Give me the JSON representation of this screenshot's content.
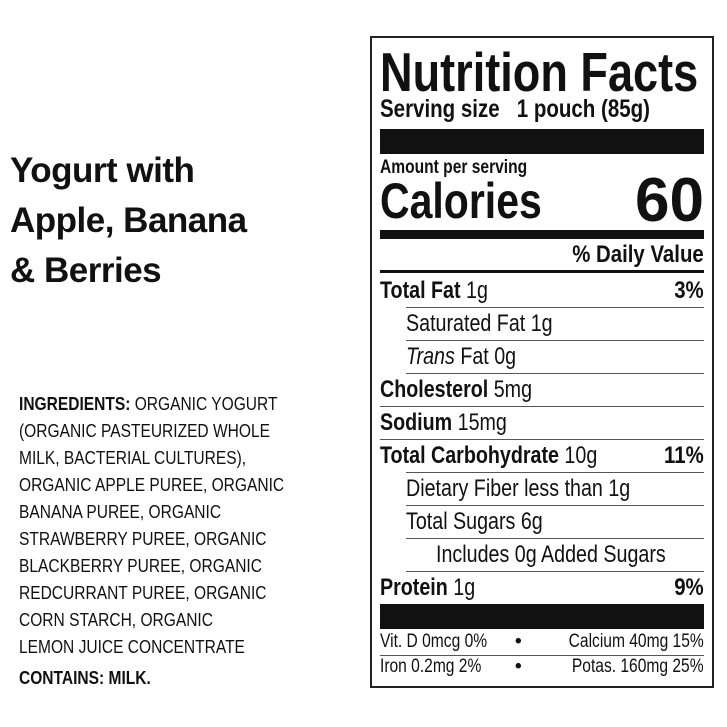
{
  "product": {
    "title_lines": [
      "Yogurt with",
      "Apple, Banana",
      "& Berries"
    ]
  },
  "ingredients": {
    "heading": "INGREDIENTS:",
    "lines": [
      " ORGANIC YOGURT",
      "(ORGANIC PASTEURIZED WHOLE",
      "MILK, BACTERIAL CULTURES),",
      "ORGANIC APPLE PUREE, ORGANIC",
      "BANANA PUREE, ORGANIC",
      "STRAWBERRY PUREE, ORGANIC",
      "BLACKBERRY PUREE, ORGANIC",
      "REDCURRANT PUREE, ORGANIC",
      "CORN STARCH, ORGANIC",
      "LEMON JUICE CONCENTRATE"
    ],
    "contains_heading": "CONTAINS:",
    "contains_value": " MILK."
  },
  "label": {
    "title": "Nutrition Facts",
    "serving_label": "Serving size",
    "serving_value": "1 pouch (85g)",
    "amount_per_serving": "Amount per serving",
    "calories_label": "Calories",
    "calories_value": "60",
    "dv_header": "% Daily Value",
    "nutrients": [
      {
        "name": "Total Fat",
        "amount": " 1g",
        "dv": "3%",
        "bold": true,
        "indent": 0
      },
      {
        "name": "Saturated Fat 1g",
        "amount": "",
        "dv": "",
        "bold": false,
        "indent": 1
      },
      {
        "name": "Trans",
        "amount": " Fat 0g",
        "dv": "",
        "bold": false,
        "indent": 1,
        "italic": true
      },
      {
        "name": "Cholesterol",
        "amount": " 5mg",
        "dv": "",
        "bold": true,
        "indent": 0
      },
      {
        "name": "Sodium",
        "amount": " 15mg",
        "dv": "",
        "bold": true,
        "indent": 0
      },
      {
        "name": "Total Carbohydrate",
        "amount": " 10g",
        "dv": "11%",
        "bold": true,
        "indent": 0
      },
      {
        "name": "Dietary Fiber less than 1g",
        "amount": "",
        "dv": "",
        "bold": false,
        "indent": 1
      },
      {
        "name": "Total Sugars 6g",
        "amount": "",
        "dv": "",
        "bold": false,
        "indent": 1
      },
      {
        "name": "Includes 0g Added Sugars",
        "amount": "",
        "dv": "",
        "bold": false,
        "indent": 2
      },
      {
        "name": "Protein",
        "amount": " 1g",
        "dv": "9%",
        "bold": true,
        "indent": 0
      }
    ],
    "micros": [
      [
        "Vit. D 0mcg 0%",
        "Calcium 40mg 15%"
      ],
      [
        "Iron 0.2mg 2%",
        "Potas. 160mg 25%"
      ]
    ],
    "bullet": "•"
  }
}
